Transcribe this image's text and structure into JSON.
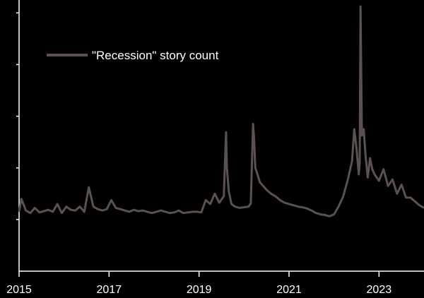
{
  "chart_data": {
    "type": "line",
    "title": "",
    "xlabel": "",
    "ylabel": "",
    "xlim": [
      2015.0,
      2024.0
    ],
    "ylim": [
      -80,
      340
    ],
    "x_ticks": [
      2015,
      2017,
      2019,
      2021,
      2023
    ],
    "x_tick_labels": [
      "2015",
      "2017",
      "2019",
      "2021",
      "2023"
    ],
    "y_ticks": [
      0,
      80,
      160,
      240,
      320
    ],
    "y_tick_labels": [
      "",
      "",
      "",
      "",
      ""
    ],
    "grid": false,
    "legend": {
      "placement": "top-left",
      "entries": [
        "\"Recession\" story count"
      ]
    },
    "series": [
      {
        "name": "\"Recession\" story count",
        "color": "#5a5150",
        "x": [
          2015.0,
          2015.05,
          2015.15,
          2015.25,
          2015.35,
          2015.45,
          2015.55,
          2015.65,
          2015.75,
          2015.85,
          2015.95,
          2016.05,
          2016.15,
          2016.25,
          2016.35,
          2016.45,
          2016.55,
          2016.65,
          2016.75,
          2016.85,
          2016.95,
          2017.05,
          2017.15,
          2017.25,
          2017.35,
          2017.45,
          2017.55,
          2017.65,
          2017.75,
          2017.85,
          2017.95,
          2018.05,
          2018.15,
          2018.25,
          2018.35,
          2018.45,
          2018.55,
          2018.65,
          2018.75,
          2018.85,
          2018.95,
          2019.05,
          2019.15,
          2019.25,
          2019.35,
          2019.45,
          2019.55,
          2019.6,
          2019.62,
          2019.66,
          2019.72,
          2019.8,
          2019.9,
          2020.0,
          2020.1,
          2020.15,
          2020.2,
          2020.22,
          2020.25,
          2020.3,
          2020.35,
          2020.4,
          2020.5,
          2020.6,
          2020.7,
          2020.8,
          2020.9,
          2021.0,
          2021.1,
          2021.2,
          2021.3,
          2021.4,
          2021.5,
          2021.6,
          2021.7,
          2021.8,
          2021.9,
          2022.0,
          2022.1,
          2022.2,
          2022.3,
          2022.4,
          2022.45,
          2022.5,
          2022.55,
          2022.57,
          2022.59,
          2022.62,
          2022.66,
          2022.7,
          2022.75,
          2022.8,
          2022.85,
          2022.9,
          2023.0,
          2023.1,
          2023.2,
          2023.3,
          2023.4,
          2023.5,
          2023.6,
          2023.7,
          2023.8,
          2023.9,
          2024.0
        ],
        "y": [
          12,
          32,
          14,
          10,
          18,
          11,
          13,
          15,
          12,
          24,
          10,
          20,
          15,
          14,
          20,
          12,
          50,
          20,
          16,
          14,
          16,
          30,
          18,
          16,
          14,
          12,
          15,
          13,
          14,
          12,
          10,
          12,
          14,
          12,
          10,
          11,
          14,
          10,
          11,
          12,
          12,
          11,
          30,
          24,
          40,
          26,
          36,
          135,
          80,
          44,
          24,
          20,
          18,
          19,
          20,
          25,
          148,
          130,
          80,
          70,
          58,
          54,
          46,
          40,
          36,
          30,
          26,
          24,
          22,
          20,
          19,
          17,
          14,
          10,
          8,
          7,
          5,
          8,
          20,
          35,
          60,
          90,
          140,
          110,
          70,
          88,
          330,
          130,
          140,
          100,
          65,
          95,
          78,
          70,
          60,
          78,
          52,
          62,
          40,
          54,
          34,
          34,
          28,
          22,
          18
        ]
      }
    ]
  }
}
